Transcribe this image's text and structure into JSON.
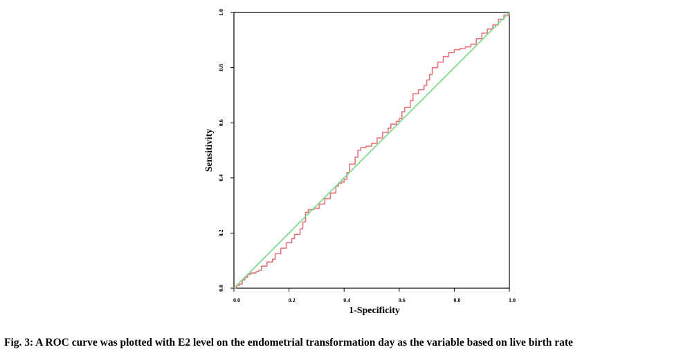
{
  "caption": "Fig. 3: A ROC curve was plotted with E2 level on the endometrial transformation day as the variable based on live birth rate",
  "chart_data": {
    "type": "line",
    "xlabel": "1-Specificity",
    "ylabel": "Sensitivity",
    "xlim": [
      0.0,
      1.0
    ],
    "ylim": [
      0.0,
      1.0
    ],
    "x_ticks": [
      "0.0",
      "0.2",
      "0.4",
      "0.6",
      "0.8",
      "1.0"
    ],
    "y_ticks": [
      "0.0",
      "0.2",
      "0.4",
      "0.6",
      "0.8",
      "1.0"
    ],
    "grid": false,
    "legend": "none",
    "series": [
      {
        "color": "#e8737b",
        "style": "step",
        "points": [
          [
            0.0,
            0.0
          ],
          [
            0.01,
            0.01
          ],
          [
            0.02,
            0.015
          ],
          [
            0.03,
            0.03
          ],
          [
            0.04,
            0.04
          ],
          [
            0.05,
            0.05
          ],
          [
            0.06,
            0.055
          ],
          [
            0.08,
            0.06
          ],
          [
            0.09,
            0.065
          ],
          [
            0.1,
            0.08
          ],
          [
            0.12,
            0.095
          ],
          [
            0.14,
            0.105
          ],
          [
            0.15,
            0.125
          ],
          [
            0.17,
            0.145
          ],
          [
            0.19,
            0.165
          ],
          [
            0.21,
            0.18
          ],
          [
            0.22,
            0.195
          ],
          [
            0.24,
            0.215
          ],
          [
            0.25,
            0.24
          ],
          [
            0.26,
            0.275
          ],
          [
            0.27,
            0.285
          ],
          [
            0.29,
            0.29
          ],
          [
            0.31,
            0.305
          ],
          [
            0.33,
            0.325
          ],
          [
            0.35,
            0.345
          ],
          [
            0.37,
            0.37
          ],
          [
            0.38,
            0.38
          ],
          [
            0.39,
            0.385
          ],
          [
            0.4,
            0.395
          ],
          [
            0.41,
            0.42
          ],
          [
            0.42,
            0.45
          ],
          [
            0.44,
            0.475
          ],
          [
            0.45,
            0.5
          ],
          [
            0.46,
            0.51
          ],
          [
            0.48,
            0.515
          ],
          [
            0.5,
            0.525
          ],
          [
            0.52,
            0.545
          ],
          [
            0.54,
            0.565
          ],
          [
            0.56,
            0.58
          ],
          [
            0.57,
            0.595
          ],
          [
            0.59,
            0.605
          ],
          [
            0.6,
            0.615
          ],
          [
            0.61,
            0.64
          ],
          [
            0.62,
            0.655
          ],
          [
            0.64,
            0.68
          ],
          [
            0.65,
            0.705
          ],
          [
            0.67,
            0.72
          ],
          [
            0.69,
            0.735
          ],
          [
            0.7,
            0.755
          ],
          [
            0.71,
            0.775
          ],
          [
            0.72,
            0.8
          ],
          [
            0.74,
            0.82
          ],
          [
            0.76,
            0.84
          ],
          [
            0.78,
            0.855
          ],
          [
            0.8,
            0.865
          ],
          [
            0.82,
            0.87
          ],
          [
            0.84,
            0.875
          ],
          [
            0.86,
            0.885
          ],
          [
            0.88,
            0.905
          ],
          [
            0.9,
            0.925
          ],
          [
            0.92,
            0.94
          ],
          [
            0.94,
            0.955
          ],
          [
            0.96,
            0.975
          ],
          [
            0.98,
            0.99
          ],
          [
            1.0,
            1.0
          ]
        ]
      },
      {
        "color": "#7fd88f",
        "style": "line",
        "points": [
          [
            0.0,
            0.0
          ],
          [
            1.0,
            1.0
          ]
        ]
      }
    ]
  }
}
